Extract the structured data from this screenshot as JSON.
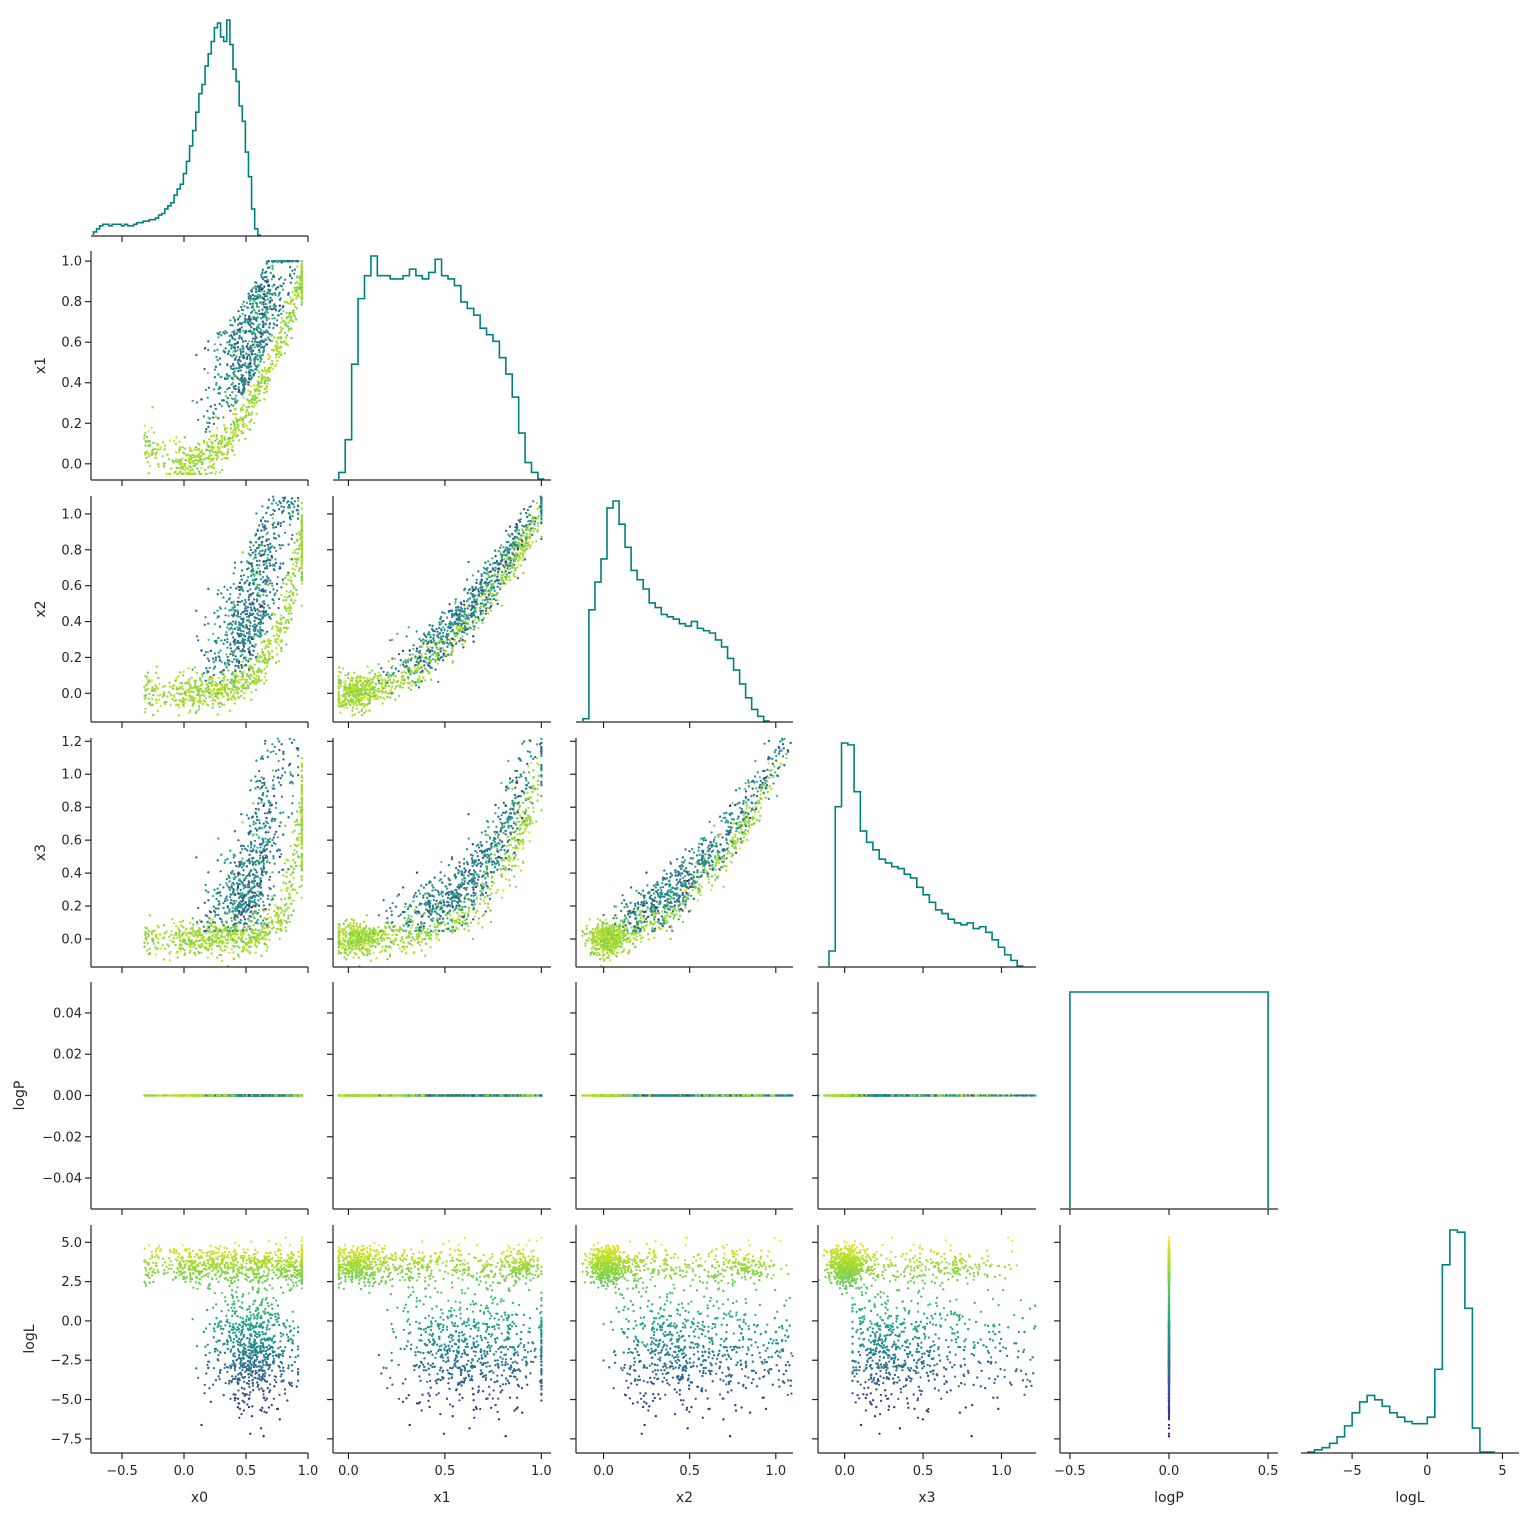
{
  "chart_data": {
    "type": "pairplot",
    "variables": [
      "x0",
      "x1",
      "x2",
      "x3",
      "logP",
      "logL"
    ],
    "layout": "lower-triangle corner plot",
    "diagonal": "step histogram",
    "offdiagonal": "scatter colored by logL (viridis)",
    "hist_color": "#008080",
    "colormap": "viridis",
    "axes": {
      "x0": {
        "range": [
          -0.75,
          1.0
        ],
        "ticks": [
          -0.5,
          0.0,
          0.5,
          1.0
        ],
        "tick_labels": [
          "−0.5",
          "0.0",
          "0.5",
          "1.0"
        ]
      },
      "x1": {
        "range": [
          -0.08,
          1.05
        ],
        "ticks": [
          0.0,
          0.2,
          0.4,
          0.6,
          0.8,
          1.0
        ],
        "tick_labels": [
          "0.0",
          "0.2",
          "0.4",
          "0.6",
          "0.8",
          "1.0"
        ]
      },
      "x2": {
        "range": [
          -0.16,
          1.1
        ],
        "ticks": [
          0.0,
          0.2,
          0.4,
          0.6,
          0.8,
          1.0
        ],
        "tick_labels": [
          "0.0",
          "0.2",
          "0.4",
          "0.6",
          "0.8",
          "1.0"
        ]
      },
      "x3": {
        "range": [
          -0.17,
          1.22
        ],
        "ticks": [
          0.0,
          0.2,
          0.4,
          0.6,
          0.8,
          1.0,
          1.2
        ],
        "tick_labels": [
          "0.0",
          "0.2",
          "0.4",
          "0.6",
          "0.8",
          "1.0",
          "1.2"
        ]
      },
      "logP": {
        "range": [
          -0.055,
          0.055
        ],
        "ticks": [
          -0.04,
          -0.02,
          0.0,
          0.02,
          0.04
        ],
        "tick_labels": [
          "−0.04",
          "−0.02",
          "0.00",
          "0.02",
          "0.04"
        ]
      },
      "logL": {
        "range": [
          -8.4,
          6.1
        ],
        "ticks": [
          -7.5,
          -5.0,
          -2.5,
          0.0,
          2.5,
          5.0
        ],
        "tick_labels": [
          "−7.5",
          "−5.0",
          "−2.5",
          "0.0",
          "2.5",
          "5.0"
        ]
      }
    },
    "x_axis_ticks": {
      "x0": {
        "range": [
          -0.75,
          1.0
        ],
        "ticks": [
          -0.5,
          0.0,
          0.5,
          1.0
        ],
        "tick_labels": [
          "−0.5",
          "0.0",
          "0.5",
          "1.0"
        ]
      },
      "x1": {
        "range": [
          -0.08,
          1.05
        ],
        "ticks": [
          0.0,
          0.5,
          1.0
        ],
        "tick_labels": [
          "0.0",
          "0.5",
          "1.0"
        ]
      },
      "x2": {
        "range": [
          -0.16,
          1.1
        ],
        "ticks": [
          0.0,
          0.5,
          1.0
        ],
        "tick_labels": [
          "0.0",
          "0.5",
          "1.0"
        ]
      },
      "x3": {
        "range": [
          -0.17,
          1.22
        ],
        "ticks": [
          0.0,
          0.5,
          1.0
        ],
        "tick_labels": [
          "0.0",
          "0.5",
          "1.0"
        ]
      },
      "logP": {
        "range": [
          -0.55,
          0.55
        ],
        "ticks": [
          -0.5,
          0.0,
          0.5
        ],
        "tick_labels": [
          "−0.5",
          "0.0",
          "0.5"
        ]
      },
      "logL": {
        "range": [
          -8.4,
          6.1
        ],
        "ticks": [
          -5,
          0,
          5
        ],
        "tick_labels": [
          "−5",
          "0",
          "5"
        ]
      }
    },
    "histograms": {
      "x0": {
        "bin_start": -0.73,
        "bin_width": 0.025,
        "counts": [
          2,
          4,
          6,
          7,
          7,
          6,
          7,
          7,
          7,
          6,
          7,
          6,
          6,
          7,
          8,
          8,
          9,
          9,
          10,
          10,
          11,
          13,
          14,
          17,
          19,
          21,
          26,
          30,
          33,
          40,
          48,
          58,
          68,
          80,
          92,
          98,
          110,
          118,
          126,
          135,
          138,
          129,
          126,
          140,
          124,
          108,
          100,
          84,
          74,
          54,
          38,
          17,
          4,
          0
        ]
      },
      "x1": {
        "bin_start": -0.05,
        "bin_width": 0.0333,
        "counts": [
          2,
          12,
          35,
          55,
          62,
          68,
          62,
          62,
          61,
          61,
          62,
          64,
          62,
          61,
          63,
          67,
          62,
          61,
          59,
          54,
          52,
          50,
          46,
          44,
          42,
          37,
          32,
          25,
          14,
          5,
          2,
          0
        ]
      },
      "x2": {
        "bin_start": -0.12,
        "bin_width": 0.035,
        "counts": [
          1,
          48,
          60,
          70,
          92,
          95,
          85,
          75,
          65,
          61,
          57,
          51,
          49,
          46,
          45,
          44,
          42,
          41,
          43,
          40,
          39,
          38,
          35,
          32,
          27,
          22,
          16,
          10,
          5,
          2,
          0
        ]
      },
      "x3": {
        "bin_start": -0.1,
        "bin_width": 0.04,
        "counts": [
          8,
          85,
          119,
          118,
          93,
          72,
          66,
          62,
          57,
          55,
          53,
          52,
          49,
          47,
          42,
          38,
          34,
          30,
          28,
          25,
          23,
          22,
          23,
          20,
          21,
          18,
          14,
          10,
          6,
          3,
          0
        ]
      },
      "logP": {
        "bin_edges": [
          -0.5,
          0.5
        ],
        "counts": [
          1
        ]
      },
      "logL": {
        "bin_start": -8.0,
        "bin_width": 0.5,
        "counts": [
          0,
          1,
          2,
          4,
          7,
          12,
          18,
          23,
          26,
          24,
          21,
          18,
          16,
          14,
          13,
          13,
          16,
          38,
          86,
          102,
          101,
          66,
          11,
          0,
          0
        ]
      }
    },
    "scatter_description": "Samples scattered in every lower-triangle pair, colored by logL; the logP column is constant at 0."
  }
}
